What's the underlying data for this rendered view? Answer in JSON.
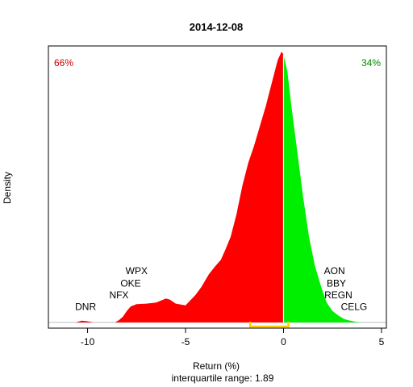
{
  "chart_data": {
    "type": "area",
    "title": "2014-12-08",
    "xlabel": "Return (%)",
    "subtitle": "interquartile range: 1.89",
    "ylabel": "Density",
    "xlim": [
      -12,
      5.25
    ],
    "ylim": [
      -0.01,
      0.485
    ],
    "x_ticks": [
      -10,
      -5,
      0,
      5
    ],
    "x_tick_labels": [
      "-10",
      "-5",
      "0",
      "5"
    ],
    "pct_negative": "66%",
    "pct_positive": "34%",
    "colors": {
      "negative": "#ff0000",
      "positive": "#00ee00",
      "iqr": "#ffcc00",
      "baseline": "#bebebe",
      "zero_line": "#ffffff",
      "pct_negative": "#cc0000",
      "pct_positive": "#008800"
    },
    "iqr": [
      -1.7,
      0.25
    ],
    "density_curve": {
      "x": [
        -10.6,
        -10.3,
        -10.0,
        -9.7,
        -9.4,
        -9.0,
        -8.6,
        -8.4,
        -8.2,
        -8.0,
        -7.8,
        -7.5,
        -7.0,
        -6.5,
        -6.0,
        -5.8,
        -5.5,
        -5.0,
        -4.5,
        -4.2,
        -3.8,
        -3.5,
        -3.2,
        -3.0,
        -2.7,
        -2.4,
        -2.1,
        -1.8,
        -1.5,
        -1.2,
        -0.9,
        -0.6,
        -0.3,
        -0.1,
        0.0,
        0.2,
        0.4,
        0.7,
        1.0,
        1.3,
        1.6,
        1.9,
        2.2,
        2.5,
        2.8,
        3.1,
        3.4,
        3.7,
        4.0,
        4.3
      ],
      "y": [
        0.0,
        0.003,
        0.002,
        0.0,
        0.0,
        0.0,
        0.0,
        0.004,
        0.01,
        0.02,
        0.028,
        0.032,
        0.033,
        0.035,
        0.042,
        0.04,
        0.033,
        0.03,
        0.048,
        0.062,
        0.085,
        0.098,
        0.11,
        0.125,
        0.15,
        0.19,
        0.24,
        0.28,
        0.31,
        0.345,
        0.38,
        0.42,
        0.46,
        0.475,
        0.47,
        0.44,
        0.38,
        0.3,
        0.22,
        0.15,
        0.1,
        0.065,
        0.035,
        0.02,
        0.012,
        0.006,
        0.003,
        0.001,
        0.0,
        0.0
      ]
    },
    "annotations": [
      {
        "text": "DNR",
        "x": -10.1,
        "y": 0.022
      },
      {
        "text": "NFX",
        "x": -8.4,
        "y": 0.042
      },
      {
        "text": "OKE",
        "x": -7.8,
        "y": 0.063
      },
      {
        "text": "WPX",
        "x": -7.5,
        "y": 0.085
      },
      {
        "text": "AON",
        "x": 2.6,
        "y": 0.085
      },
      {
        "text": "BBY",
        "x": 2.7,
        "y": 0.063
      },
      {
        "text": "REGN",
        "x": 2.8,
        "y": 0.042
      },
      {
        "text": "CELG",
        "x": 3.6,
        "y": 0.022
      }
    ]
  }
}
